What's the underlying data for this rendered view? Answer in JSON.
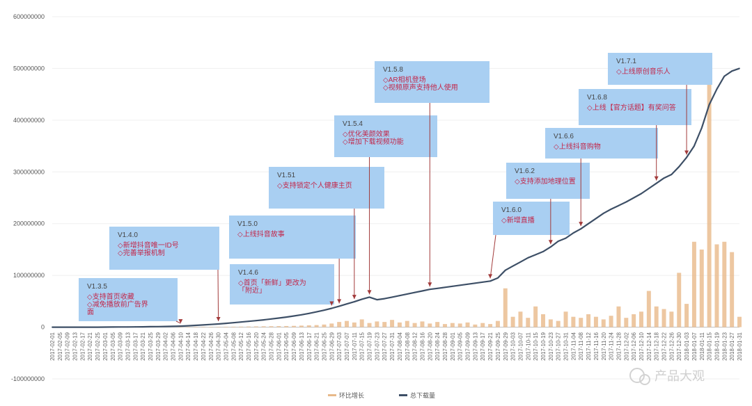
{
  "chart_data": {
    "type": "bar",
    "ylim": [
      -100000000,
      600000000
    ],
    "y_ticks": [
      "600000000",
      "500000000",
      "400000000",
      "300000000",
      "200000000",
      "100000000",
      "0",
      "-100000000"
    ],
    "x": [
      "2017-02-01",
      "2017-02-05",
      "2017-02-09",
      "2017-02-13",
      "2017-02-17",
      "2017-02-21",
      "2017-02-25",
      "2017-03-01",
      "2017-03-05",
      "2017-03-09",
      "2017-03-13",
      "2017-03-17",
      "2017-03-21",
      "2017-03-25",
      "2017-03-29",
      "2017-04-02",
      "2017-04-06",
      "2017-04-10",
      "2017-04-14",
      "2017-04-18",
      "2017-04-22",
      "2017-04-26",
      "2017-04-30",
      "2017-05-04",
      "2017-05-08",
      "2017-05-12",
      "2017-05-16",
      "2017-05-20",
      "2017-05-24",
      "2017-05-28",
      "2017-06-01",
      "2017-06-05",
      "2017-06-09",
      "2017-06-13",
      "2017-06-17",
      "2017-06-21",
      "2017-06-25",
      "2017-06-29",
      "2017-07-03",
      "2017-07-07",
      "2017-07-11",
      "2017-07-15",
      "2017-07-19",
      "2017-07-23",
      "2017-07-27",
      "2017-07-31",
      "2017-08-04",
      "2017-08-08",
      "2017-08-12",
      "2017-08-16",
      "2017-08-20",
      "2017-08-24",
      "2017-08-28",
      "2017-09-01",
      "2017-09-05",
      "2017-09-09",
      "2017-09-13",
      "2017-09-17",
      "2017-09-21",
      "2017-09-25",
      "2017-09-29",
      "2017-10-03",
      "2017-10-07",
      "2017-10-11",
      "2017-10-15",
      "2017-10-19",
      "2017-10-23",
      "2017-10-27",
      "2017-10-31",
      "2017-11-04",
      "2017-11-08",
      "2017-11-12",
      "2017-11-16",
      "2017-11-20",
      "2017-11-24",
      "2017-11-28",
      "2017-12-02",
      "2017-12-06",
      "2017-12-10",
      "2017-12-14",
      "2017-12-18",
      "2017-12-22",
      "2017-12-26",
      "2017-12-30",
      "2018-01-03",
      "2018-01-07",
      "2018-01-11",
      "2018-01-15",
      "2018-01-19",
      "2018-01-23",
      "2018-01-27",
      "2018-01-31"
    ],
    "series": [
      {
        "name": "环比增长",
        "type": "bar",
        "color": "#e8b98a",
        "values": [
          0,
          0,
          0,
          0,
          0,
          0,
          0,
          0,
          0,
          0,
          0,
          0,
          0,
          0,
          0,
          0,
          0,
          200000,
          300000,
          400000,
          500000,
          600000,
          700000,
          800000,
          900000,
          1000000,
          1200000,
          1400000,
          1600000,
          1800000,
          2000000,
          2200000,
          2500000,
          3000000,
          3500000,
          4000000,
          5000000,
          7000000,
          10000000,
          12000000,
          9000000,
          15000000,
          8000000,
          11000000,
          10000000,
          14000000,
          9000000,
          12000000,
          8000000,
          11000000,
          7000000,
          10000000,
          6000000,
          8000000,
          7000000,
          9000000,
          5000000,
          8000000,
          6000000,
          12000000,
          75000000,
          20000000,
          30000000,
          18000000,
          40000000,
          25000000,
          15000000,
          12000000,
          30000000,
          20000000,
          18000000,
          25000000,
          20000000,
          15000000,
          22000000,
          40000000,
          18000000,
          25000000,
          30000000,
          70000000,
          40000000,
          35000000,
          30000000,
          105000000,
          45000000,
          165000000,
          150000000,
          525000000,
          160000000,
          165000000,
          145000000,
          20000000
        ]
      },
      {
        "name": "总下载量",
        "type": "line",
        "color": "#3d4f66",
        "values": [
          0,
          0,
          0,
          0,
          0,
          0,
          0,
          100000,
          200000,
          300000,
          400000,
          500000,
          700000,
          900000,
          1100000,
          1300000,
          1600000,
          2000000,
          2600000,
          3400000,
          4300000,
          5200000,
          6200000,
          7400000,
          8600000,
          9900000,
          11200000,
          12600000,
          14100000,
          15800000,
          17600000,
          19500000,
          21600000,
          23900000,
          26500000,
          29500000,
          32800000,
          36400000,
          40500000,
          44800000,
          49000000,
          54000000,
          58000000,
          53000000,
          55000000,
          58000000,
          61000000,
          64000000,
          67000000,
          70000000,
          73000000,
          75000000,
          77000000,
          79000000,
          81000000,
          83000000,
          85000000,
          87000000,
          89000000,
          95000000,
          110000000,
          118000000,
          126000000,
          134000000,
          140000000,
          146000000,
          155000000,
          166000000,
          172000000,
          182000000,
          190000000,
          200000000,
          210000000,
          220000000,
          228000000,
          235000000,
          242000000,
          250000000,
          258000000,
          268000000,
          278000000,
          288000000,
          295000000,
          310000000,
          328000000,
          350000000,
          385000000,
          430000000,
          460000000,
          485000000,
          495000000,
          500000000
        ]
      }
    ],
    "annotations": [
      {
        "version": "V1.3.5",
        "lines": [
          "◇支持首页收藏",
          "◇减免播放前广告界",
          "面"
        ],
        "date": "2017-04-10"
      },
      {
        "version": "V1.4.0",
        "lines": [
          "◇新增抖音唯一ID号",
          "◇完善举报机制"
        ],
        "date": "2017-04-30"
      },
      {
        "version": "V1.5.0",
        "lines": [
          "◇上线抖音故事"
        ],
        "date": "2017-07-03"
      },
      {
        "version": "V1.4.6",
        "lines": [
          "◇首页「新鲜」更改为",
          "「附近」"
        ],
        "date": "2017-06-29"
      },
      {
        "version": "V1.51",
        "lines": [
          "◇支持锁定个人健康主页"
        ],
        "date": "2017-07-11"
      },
      {
        "version": "V1.5.4",
        "lines": [
          "◇优化美颜效果",
          "◇增加下载视频功能"
        ],
        "date": "2017-07-19"
      },
      {
        "version": "V1.5.8",
        "lines": [
          "◇AR相机登场",
          "◇视频原声支持他人使用"
        ],
        "date": "2017-08-20"
      },
      {
        "version": "V1.6.0",
        "lines": [
          "◇新增直播"
        ],
        "date": "2017-09-21"
      },
      {
        "version": "V1.6.2",
        "lines": [
          "◇支持添加地理位置"
        ],
        "date": "2017-10-23"
      },
      {
        "version": "V1.6.6",
        "lines": [
          "◇上线抖音购物"
        ],
        "date": "2017-11-08"
      },
      {
        "version": "V1.6.8",
        "lines": [
          "◇上线【官方话题】有奖问答"
        ],
        "date": "2017-12-18"
      },
      {
        "version": "V1.7.1",
        "lines": [
          "◇上线原创音乐人"
        ],
        "date": "2018-01-03"
      }
    ],
    "legend_position": "bottom",
    "grid": true
  },
  "watermark_text": "产品大观"
}
